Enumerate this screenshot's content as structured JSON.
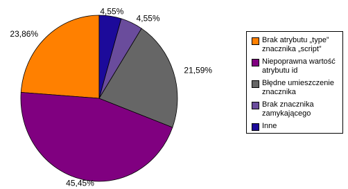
{
  "chart_data": {
    "type": "pie",
    "categories": [
      "Brak atrybutu „type” znacznika „script”",
      "Niepoprawna wartość atrybutu id",
      "Błędne umieszczenie znacznika",
      "Brak znacznika zamykającego",
      "Inne"
    ],
    "values": [
      23.86,
      45.45,
      21.59,
      4.55,
      4.55
    ],
    "value_labels": [
      "23,86%",
      "45,45%",
      "21,59%",
      "4,55%",
      "4,55%"
    ],
    "colors": [
      "#ff8000",
      "#800080",
      "#666666",
      "#6a4c9c",
      "#1c0a9a"
    ],
    "legend": "right"
  }
}
